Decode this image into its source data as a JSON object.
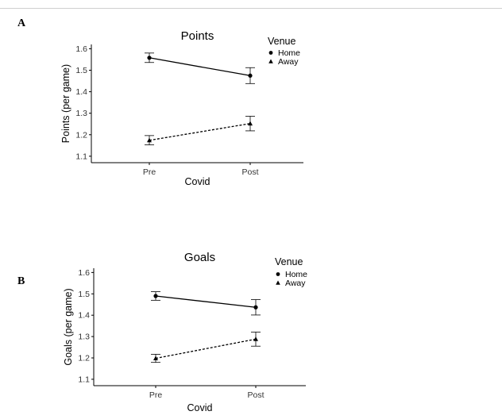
{
  "panels": [
    {
      "letter": "A"
    },
    {
      "letter": "B"
    }
  ],
  "chart_data": [
    {
      "type": "line",
      "title": "Points",
      "xlabel": "Covid",
      "ylabel": "Points (per game)",
      "categories": [
        "Pre",
        "Post"
      ],
      "ylim": [
        1.07,
        1.62
      ],
      "yticks": [
        "1.1",
        "1.2",
        "1.3",
        "1.4",
        "1.5",
        "1.6"
      ],
      "grid": false,
      "legend": {
        "title": "Venue",
        "position": "top-right"
      },
      "series": [
        {
          "name": "Home",
          "marker": "circle",
          "line": "solid",
          "values": [
            1.558,
            1.475
          ],
          "error_low": [
            1.536,
            1.438
          ],
          "error_high": [
            1.58,
            1.512
          ]
        },
        {
          "name": "Away",
          "marker": "triangle",
          "line": "dashed",
          "values": [
            1.174,
            1.252
          ],
          "error_low": [
            1.153,
            1.218
          ],
          "error_high": [
            1.196,
            1.286
          ]
        }
      ]
    },
    {
      "type": "line",
      "title": "Goals",
      "xlabel": "Covid",
      "ylabel": "Goals (per game)",
      "categories": [
        "Pre",
        "Post"
      ],
      "ylim": [
        1.07,
        1.62
      ],
      "yticks": [
        "1.1",
        "1.2",
        "1.3",
        "1.4",
        "1.5",
        "1.6"
      ],
      "grid": false,
      "legend": {
        "title": "Venue",
        "position": "top-right"
      },
      "series": [
        {
          "name": "Home",
          "marker": "circle",
          "line": "solid",
          "values": [
            1.49,
            1.437
          ],
          "error_low": [
            1.47,
            1.401
          ],
          "error_high": [
            1.51,
            1.473
          ]
        },
        {
          "name": "Away",
          "marker": "triangle",
          "line": "dashed",
          "values": [
            1.198,
            1.288
          ],
          "error_low": [
            1.179,
            1.255
          ],
          "error_high": [
            1.217,
            1.321
          ]
        }
      ]
    }
  ]
}
